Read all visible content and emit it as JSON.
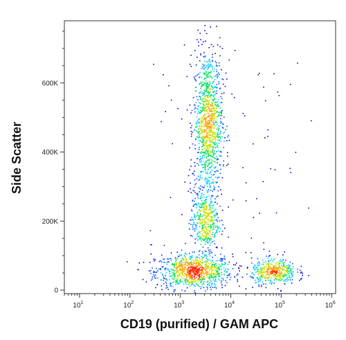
{
  "chart_data": {
    "type": "scatter",
    "subtype": "flow-cytometry density plot (pseudocolor)",
    "xlabel": "CD19 (purified) / GAM APC",
    "ylabel": "Side Scatter",
    "x_scale": "log",
    "xlim": [
      5,
      1200000
    ],
    "ylim": [
      -10000,
      780000
    ],
    "x_ticks": [
      {
        "value": 10,
        "base": "10",
        "exp": "1"
      },
      {
        "value": 100,
        "base": "10",
        "exp": "2"
      },
      {
        "value": 1000,
        "base": "10",
        "exp": "3"
      },
      {
        "value": 10000,
        "base": "10",
        "exp": "4"
      },
      {
        "value": 100000,
        "base": "10",
        "exp": "5"
      },
      {
        "value": 1000000,
        "base": "10",
        "exp": "6"
      }
    ],
    "y_ticks": [
      {
        "value": 0,
        "label": "0"
      },
      {
        "value": 200000,
        "label": "200K"
      },
      {
        "value": 400000,
        "label": "400K"
      },
      {
        "value": 600000,
        "label": "600K"
      }
    ],
    "grid": false,
    "legend": "none",
    "colormap": [
      "#0000c8",
      "#0050ff",
      "#00c8ff",
      "#00e060",
      "#c8e000",
      "#ffa000",
      "#ff2000"
    ],
    "populations": [
      {
        "name": "CD19-negative low-SSC cluster",
        "center_x": 1800,
        "center_y": 55000,
        "spread_log10x": 0.38,
        "spread_y": 25000,
        "relative_density": "very high"
      },
      {
        "name": "CD19-negative high-SSC cluster",
        "center_x": 3500,
        "center_y": 480000,
        "spread_log10x": 0.14,
        "spread_y": 110000,
        "relative_density": "high"
      },
      {
        "name": "CD19-negative mid-SSC cluster",
        "center_x": 3000,
        "center_y": 200000,
        "spread_log10x": 0.14,
        "spread_y": 45000,
        "relative_density": "medium"
      },
      {
        "name": "CD19-positive cluster",
        "center_x": 70000,
        "center_y": 55000,
        "spread_log10x": 0.22,
        "spread_y": 18000,
        "relative_density": "medium"
      }
    ]
  }
}
